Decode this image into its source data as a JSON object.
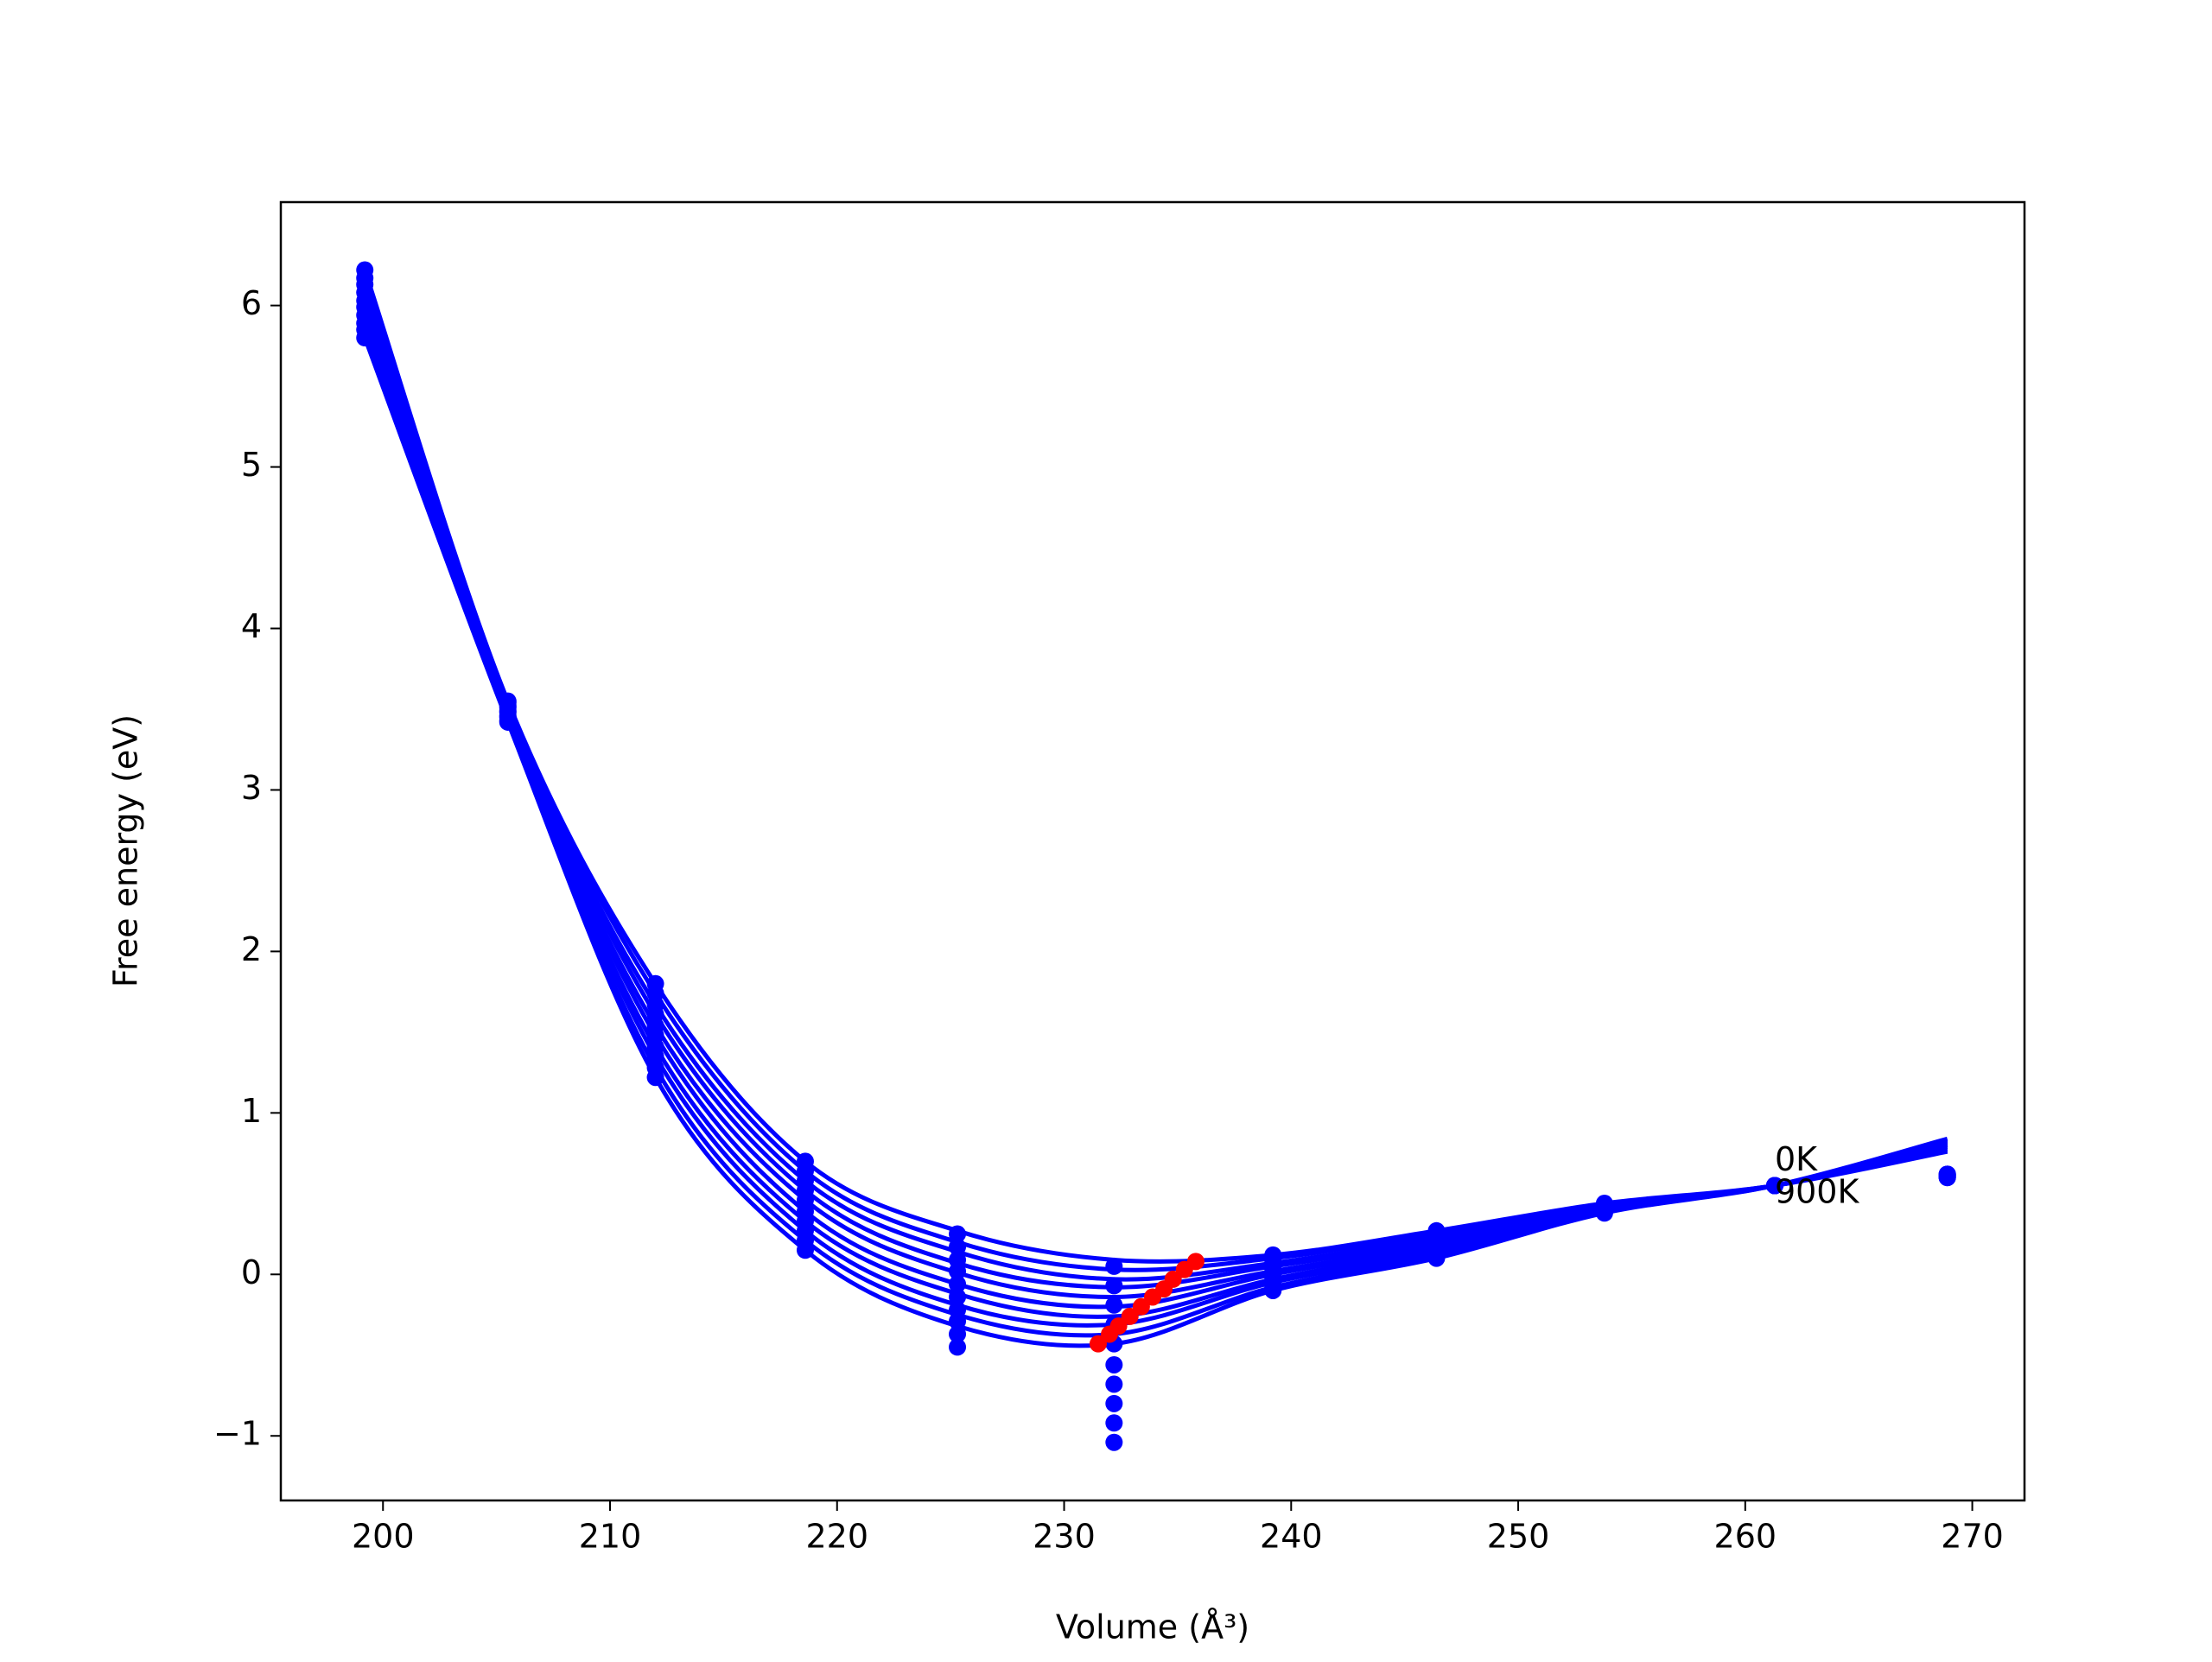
{
  "chart_data": {
    "type": "line",
    "xlabel": "Volume (Å³)",
    "ylabel": "Free energy (eV)",
    "xlim": [
      195.5,
      272.3
    ],
    "ylim": [
      -1.4,
      6.64
    ],
    "xticks": [
      200,
      210,
      220,
      230,
      240,
      250,
      260,
      270
    ],
    "yticks": [
      {
        "value": -1,
        "label": "−1"
      },
      0,
      1,
      2,
      3,
      4,
      5,
      6
    ],
    "grid": false,
    "x": [
      199.2,
      205.5,
      212.0,
      218.6,
      225.3,
      232.2,
      239.2,
      246.4,
      253.8,
      261.3,
      268.9
    ],
    "points": {
      "color": "#0000ff",
      "series": [
        [
          6.22,
          3.55,
          1.8,
          0.7,
          0.25,
          0.05,
          0.12,
          0.27,
          0.44,
          0.55,
          0.62
        ],
        [
          6.17,
          3.54,
          1.74,
          0.64,
          0.17,
          -0.07,
          0.1,
          0.25,
          0.43,
          0.55,
          0.62
        ],
        [
          6.13,
          3.52,
          1.67,
          0.58,
          0.09,
          -0.19,
          0.07,
          0.23,
          0.43,
          0.55,
          0.62
        ],
        [
          6.08,
          3.51,
          1.61,
          0.52,
          0.02,
          -0.31,
          0.05,
          0.21,
          0.42,
          0.55,
          0.61
        ],
        [
          6.03,
          3.49,
          1.54,
          0.46,
          -0.06,
          -0.43,
          0.02,
          0.19,
          0.41,
          0.55,
          0.61
        ],
        [
          5.99,
          3.48,
          1.48,
          0.39,
          -0.14,
          -0.56,
          0.0,
          0.18,
          0.41,
          0.55,
          0.61
        ],
        [
          5.94,
          3.46,
          1.41,
          0.33,
          -0.22,
          -0.68,
          -0.03,
          0.16,
          0.4,
          0.55,
          0.61
        ],
        [
          5.89,
          3.45,
          1.35,
          0.27,
          -0.29,
          -0.8,
          -0.05,
          0.14,
          0.39,
          0.55,
          0.6
        ],
        [
          5.85,
          3.43,
          1.28,
          0.21,
          -0.37,
          -0.92,
          -0.08,
          0.12,
          0.39,
          0.55,
          0.6
        ],
        [
          5.8,
          3.42,
          1.22,
          0.15,
          -0.45,
          -1.04,
          -0.1,
          0.1,
          0.38,
          0.55,
          0.6
        ]
      ]
    },
    "fits": {
      "color": "#0000ff",
      "series": [
        [
          6.22,
          3.55,
          1.8,
          0.7,
          0.27,
          0.09,
          0.12,
          0.27,
          0.44,
          0.55,
          0.76
        ],
        [
          6.17,
          3.54,
          1.74,
          0.64,
          0.2,
          0.03,
          0.1,
          0.25,
          0.43,
          0.55,
          0.77
        ],
        [
          6.13,
          3.52,
          1.67,
          0.58,
          0.14,
          -0.03,
          0.07,
          0.23,
          0.43,
          0.55,
          0.78
        ],
        [
          6.08,
          3.51,
          1.61,
          0.52,
          0.07,
          -0.08,
          0.05,
          0.21,
          0.42,
          0.55,
          0.79
        ],
        [
          6.03,
          3.49,
          1.54,
          0.46,
          0.01,
          -0.14,
          0.02,
          0.19,
          0.41,
          0.55,
          0.8
        ],
        [
          5.99,
          3.48,
          1.48,
          0.39,
          -0.06,
          -0.2,
          0.0,
          0.18,
          0.41,
          0.55,
          0.8
        ],
        [
          5.94,
          3.46,
          1.41,
          0.33,
          -0.12,
          -0.26,
          -0.03,
          0.16,
          0.4,
          0.55,
          0.81
        ],
        [
          5.89,
          3.45,
          1.35,
          0.27,
          -0.19,
          -0.31,
          -0.05,
          0.14,
          0.39,
          0.55,
          0.82
        ],
        [
          5.85,
          3.43,
          1.28,
          0.21,
          -0.25,
          -0.37,
          -0.08,
          0.12,
          0.39,
          0.55,
          0.83
        ],
        [
          5.8,
          3.42,
          1.22,
          0.15,
          -0.32,
          -0.43,
          -0.1,
          0.1,
          0.38,
          0.55,
          0.84
        ]
      ]
    },
    "minima": {
      "color": "#ff0000",
      "x": [
        235.8,
        235.3,
        234.8,
        234.4,
        233.9,
        233.4,
        232.9,
        232.4,
        232.0,
        231.5
      ],
      "values": [
        0.08,
        0.03,
        -0.03,
        -0.09,
        -0.14,
        -0.2,
        -0.26,
        -0.32,
        -0.37,
        -0.43
      ]
    },
    "annotations": [
      {
        "text": "0K",
        "x": 261.3,
        "y": 0.7
      },
      {
        "text": "900K",
        "x": 261.3,
        "y": 0.5
      }
    ]
  }
}
